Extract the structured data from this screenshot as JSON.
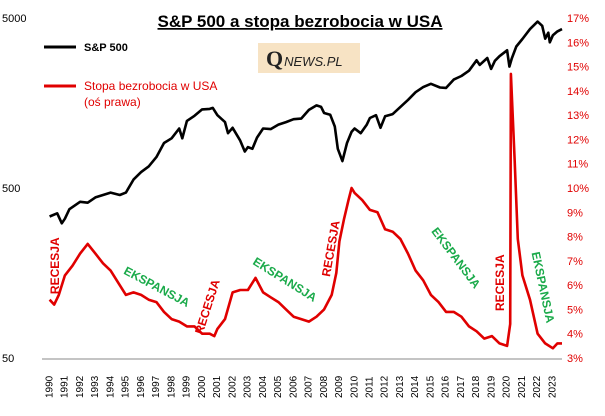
{
  "chart_data": {
    "type": "line",
    "title": "S&P 500 a stopa  bezrobocia  w USA",
    "left_axis": {
      "scale": "log",
      "tick_labels": [
        "5000",
        "500",
        "50"
      ],
      "ylim": [
        50,
        5000
      ]
    },
    "right_axis": {
      "scale": "linear",
      "tick_labels": [
        "17%",
        "16%",
        "15%",
        "14%",
        "13%",
        "12%",
        "11%",
        "10%",
        "9%",
        "8%",
        "7%",
        "6%",
        "5%",
        "4%",
        "3%"
      ],
      "ylim": [
        3,
        17
      ]
    },
    "x_tick_labels": [
      "1990",
      "1991",
      "1992",
      "1993",
      "1994",
      "1995",
      "1996",
      "1997",
      "1998",
      "1999",
      "2000",
      "2001",
      "2002",
      "2003",
      "2004",
      "2005",
      "2006",
      "2007",
      "2008",
      "2009",
      "2010",
      "2011",
      "2012",
      "2013",
      "2014",
      "2015",
      "2016",
      "2017",
      "2018",
      "2019",
      "2020",
      "2021",
      "2022",
      "2023"
    ],
    "xlim": [
      1989.5,
      2023.6
    ],
    "grid": false,
    "series": [
      {
        "name": "S&P 500",
        "axis": "left",
        "color": "#000000",
        "points": [
          [
            1990.0,
            340
          ],
          [
            1990.5,
            355
          ],
          [
            1990.8,
            310
          ],
          [
            1991.0,
            330
          ],
          [
            1991.3,
            375
          ],
          [
            1992.0,
            415
          ],
          [
            1992.5,
            410
          ],
          [
            1993.0,
            440
          ],
          [
            1994.0,
            470
          ],
          [
            1994.6,
            455
          ],
          [
            1995.0,
            470
          ],
          [
            1995.5,
            560
          ],
          [
            1996.0,
            620
          ],
          [
            1996.5,
            670
          ],
          [
            1997.0,
            760
          ],
          [
            1997.5,
            920
          ],
          [
            1998.0,
            980
          ],
          [
            1998.5,
            1120
          ],
          [
            1998.7,
            980
          ],
          [
            1999.0,
            1240
          ],
          [
            1999.5,
            1330
          ],
          [
            2000.0,
            1450
          ],
          [
            2000.5,
            1460
          ],
          [
            2000.7,
            1480
          ],
          [
            2001.0,
            1340
          ],
          [
            2001.5,
            1220
          ],
          [
            2001.7,
            1050
          ],
          [
            2002.0,
            1130
          ],
          [
            2002.5,
            950
          ],
          [
            2002.8,
            820
          ],
          [
            2003.0,
            870
          ],
          [
            2003.3,
            850
          ],
          [
            2003.6,
            990
          ],
          [
            2004.0,
            1120
          ],
          [
            2004.5,
            1110
          ],
          [
            2005.0,
            1180
          ],
          [
            2005.5,
            1220
          ],
          [
            2006.0,
            1270
          ],
          [
            2006.5,
            1280
          ],
          [
            2007.0,
            1440
          ],
          [
            2007.5,
            1530
          ],
          [
            2007.8,
            1500
          ],
          [
            2008.0,
            1380
          ],
          [
            2008.4,
            1350
          ],
          [
            2008.7,
            1150
          ],
          [
            2008.9,
            850
          ],
          [
            2009.2,
            720
          ],
          [
            2009.5,
            920
          ],
          [
            2009.8,
            1070
          ],
          [
            2010.0,
            1120
          ],
          [
            2010.4,
            1050
          ],
          [
            2010.8,
            1180
          ],
          [
            2011.0,
            1290
          ],
          [
            2011.4,
            1340
          ],
          [
            2011.7,
            1130
          ],
          [
            2012.0,
            1320
          ],
          [
            2012.5,
            1360
          ],
          [
            2013.0,
            1500
          ],
          [
            2013.5,
            1650
          ],
          [
            2014.0,
            1830
          ],
          [
            2014.5,
            1960
          ],
          [
            2015.0,
            2050
          ],
          [
            2015.6,
            1950
          ],
          [
            2016.0,
            1940
          ],
          [
            2016.5,
            2170
          ],
          [
            2017.0,
            2280
          ],
          [
            2017.5,
            2450
          ],
          [
            2018.0,
            2820
          ],
          [
            2018.2,
            2650
          ],
          [
            2018.7,
            2910
          ],
          [
            2018.95,
            2510
          ],
          [
            2019.2,
            2800
          ],
          [
            2019.5,
            2980
          ],
          [
            2020.0,
            3230
          ],
          [
            2020.15,
            2590
          ],
          [
            2020.3,
            2880
          ],
          [
            2020.6,
            3400
          ],
          [
            2021.0,
            3760
          ],
          [
            2021.5,
            4300
          ],
          [
            2022.0,
            4760
          ],
          [
            2022.3,
            4500
          ],
          [
            2022.5,
            3780
          ],
          [
            2022.7,
            4100
          ],
          [
            2022.8,
            3600
          ],
          [
            2023.0,
            3960
          ],
          [
            2023.3,
            4170
          ],
          [
            2023.6,
            4300
          ]
        ]
      },
      {
        "name": "Stopa bezrobocia w USA\n(oś prawa)",
        "axis": "right",
        "color": "#e00000",
        "points": [
          [
            1990.0,
            5.4
          ],
          [
            1990.3,
            5.2
          ],
          [
            1990.6,
            5.6
          ],
          [
            1991.0,
            6.4
          ],
          [
            1991.5,
            6.8
          ],
          [
            1992.0,
            7.3
          ],
          [
            1992.5,
            7.7
          ],
          [
            1993.0,
            7.3
          ],
          [
            1993.5,
            6.9
          ],
          [
            1994.0,
            6.6
          ],
          [
            1994.5,
            6.1
          ],
          [
            1995.0,
            5.6
          ],
          [
            1995.5,
            5.7
          ],
          [
            1996.0,
            5.6
          ],
          [
            1996.5,
            5.4
          ],
          [
            1997.0,
            5.3
          ],
          [
            1997.5,
            4.9
          ],
          [
            1998.0,
            4.6
          ],
          [
            1998.5,
            4.5
          ],
          [
            1999.0,
            4.3
          ],
          [
            1999.5,
            4.3
          ],
          [
            2000.0,
            4.0
          ],
          [
            2000.5,
            4.0
          ],
          [
            2000.8,
            3.9
          ],
          [
            2001.0,
            4.2
          ],
          [
            2001.5,
            4.6
          ],
          [
            2002.0,
            5.7
          ],
          [
            2002.5,
            5.8
          ],
          [
            2003.0,
            5.8
          ],
          [
            2003.5,
            6.3
          ],
          [
            2004.0,
            5.7
          ],
          [
            2004.5,
            5.5
          ],
          [
            2005.0,
            5.3
          ],
          [
            2005.5,
            5.0
          ],
          [
            2006.0,
            4.7
          ],
          [
            2006.5,
            4.6
          ],
          [
            2007.0,
            4.5
          ],
          [
            2007.5,
            4.7
          ],
          [
            2008.0,
            5.0
          ],
          [
            2008.5,
            5.6
          ],
          [
            2008.8,
            6.5
          ],
          [
            2009.0,
            7.8
          ],
          [
            2009.3,
            8.7
          ],
          [
            2009.6,
            9.5
          ],
          [
            2009.8,
            10.0
          ],
          [
            2010.0,
            9.8
          ],
          [
            2010.5,
            9.5
          ],
          [
            2011.0,
            9.1
          ],
          [
            2011.5,
            9.0
          ],
          [
            2012.0,
            8.3
          ],
          [
            2012.5,
            8.2
          ],
          [
            2013.0,
            7.9
          ],
          [
            2013.5,
            7.3
          ],
          [
            2014.0,
            6.6
          ],
          [
            2014.5,
            6.2
          ],
          [
            2015.0,
            5.6
          ],
          [
            2015.5,
            5.3
          ],
          [
            2016.0,
            4.9
          ],
          [
            2016.5,
            4.9
          ],
          [
            2017.0,
            4.7
          ],
          [
            2017.5,
            4.3
          ],
          [
            2018.0,
            4.1
          ],
          [
            2018.5,
            3.8
          ],
          [
            2019.0,
            3.9
          ],
          [
            2019.5,
            3.6
          ],
          [
            2020.0,
            3.5
          ],
          [
            2020.2,
            4.4
          ],
          [
            2020.25,
            14.7
          ],
          [
            2020.5,
            11.1
          ],
          [
            2020.7,
            7.9
          ],
          [
            2021.0,
            6.4
          ],
          [
            2021.5,
            5.4
          ],
          [
            2022.0,
            4.0
          ],
          [
            2022.5,
            3.6
          ],
          [
            2023.0,
            3.4
          ],
          [
            2023.3,
            3.6
          ],
          [
            2023.6,
            3.6
          ]
        ]
      }
    ],
    "annotations": [
      {
        "text": "RECESJA",
        "color": "#e00000",
        "x": 1990.4,
        "y": 6.8,
        "angle": -90
      },
      {
        "text": "EKSPANSJA",
        "color": "#1aaa4a",
        "x": 1997.0,
        "y": 5.9,
        "angle": 28
      },
      {
        "text": "RECESJA",
        "color": "#e00000",
        "x": 2000.4,
        "y": 5.1,
        "angle": -72
      },
      {
        "text": "EKSPANSJA",
        "color": "#1aaa4a",
        "x": 2005.4,
        "y": 6.2,
        "angle": 32
      },
      {
        "text": "RECESJA",
        "color": "#e00000",
        "x": 2008.5,
        "y": 7.5,
        "angle": -80
      },
      {
        "text": "EKSPANSJA",
        "color": "#1aaa4a",
        "x": 2016.6,
        "y": 7.1,
        "angle": 53
      },
      {
        "text": "RECESJA",
        "color": "#e00000",
        "x": 2019.6,
        "y": 6.1,
        "angle": -90
      },
      {
        "text": "EKSPANSJA",
        "color": "#1aaa4a",
        "x": 2022.3,
        "y": 5.9,
        "angle": 78
      }
    ],
    "legend": {
      "placement": "top-left"
    }
  },
  "logo": {
    "q": "Q",
    "rest": "NEWS.PL"
  }
}
